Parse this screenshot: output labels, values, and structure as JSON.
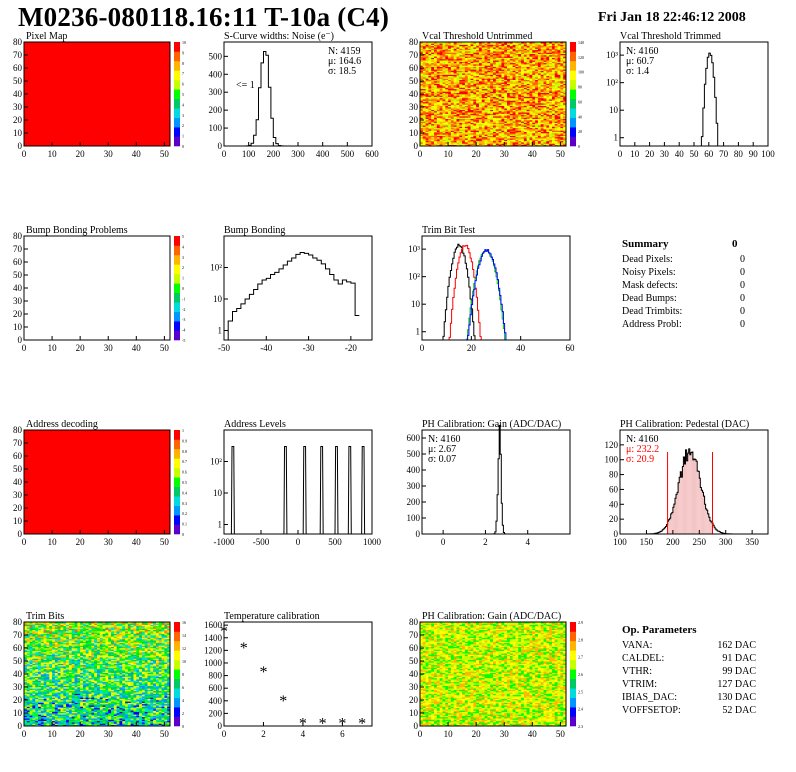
{
  "header": {
    "title": "M0236-080118.16:11 T-10a (C4)",
    "date": "Fri Jan 18 22:46:12 2008"
  },
  "colors": {
    "palette": [
      "#5a00c8",
      "#0000ff",
      "#0096ff",
      "#00dcdc",
      "#00c864",
      "#00ff00",
      "#c8ff00",
      "#ffff00",
      "#ffb400",
      "#ff6400",
      "#ff0000"
    ],
    "red": "#ff0000",
    "green": "#00cc00",
    "blue": "#0000ff"
  },
  "chart_data": [
    {
      "id": "pixel-map",
      "type": "heatmap",
      "title": "Pixel Map",
      "xlim": [
        0,
        52
      ],
      "ylim": [
        0,
        80
      ],
      "xticks": [
        "0",
        "10",
        "20",
        "30",
        "40",
        "50"
      ],
      "yticks": [
        "0",
        "10",
        "20",
        "30",
        "40",
        "50",
        "60",
        "70",
        "80"
      ],
      "zlim": [
        0,
        10
      ],
      "zticks": [
        "0",
        "1",
        "2",
        "3",
        "4",
        "5",
        "6",
        "7",
        "8",
        "9",
        "10"
      ],
      "fill": "uniform",
      "fill_value": 10
    },
    {
      "id": "scurve-widths",
      "type": "histogram",
      "title": "S-Curve widths: Noise (e⁻)",
      "xlim": [
        0,
        600
      ],
      "ylim": [
        0,
        580
      ],
      "log": false,
      "xticks": [
        "0",
        "100",
        "200",
        "300",
        "400",
        "500",
        "600"
      ],
      "yticks": [
        "0",
        "100",
        "200",
        "300",
        "400",
        "500"
      ],
      "stats": [
        "N: 4159",
        "μ: 164.6",
        "σ: 18.5"
      ],
      "annotation": "<= 1",
      "peaks": [
        {
          "mu": 164.6,
          "sigma": 18.5,
          "height": 560
        }
      ],
      "bins": 60
    },
    {
      "id": "vcal-untrimmed",
      "type": "heatmap",
      "title": "Vcal Threshold Untrimmed",
      "xlim": [
        0,
        52
      ],
      "ylim": [
        0,
        80
      ],
      "xticks": [
        "0",
        "10",
        "20",
        "30",
        "40",
        "50"
      ],
      "yticks": [
        "0",
        "10",
        "20",
        "30",
        "40",
        "50",
        "60",
        "70",
        "80"
      ],
      "zlim": [
        0,
        140
      ],
      "zticks": [
        "0",
        "20",
        "40",
        "60",
        "80",
        "100",
        "120",
        "140"
      ],
      "fill": "noise",
      "fill_mean": 0.8,
      "fill_spread": 0.15
    },
    {
      "id": "vcal-trimmed",
      "type": "histogram",
      "title": "Vcal Threshold Trimmed",
      "xlim": [
        0,
        100
      ],
      "ylim_log": [
        0.5,
        3000
      ],
      "log": true,
      "xticks": [
        "0",
        "10",
        "20",
        "30",
        "40",
        "50",
        "60",
        "70",
        "80",
        "90",
        "100"
      ],
      "yticks": [
        "1",
        "10",
        "10²",
        "10³"
      ],
      "stats": [
        "N: 4160",
        "μ: 60.7",
        "σ: 1.4"
      ],
      "peaks": [
        {
          "mu": 60.7,
          "sigma": 1.4,
          "height": 1200
        }
      ],
      "bins": 100
    },
    {
      "id": "bump-problems",
      "type": "heatmap",
      "title": "Bump Bonding Problems",
      "xlim": [
        0,
        52
      ],
      "ylim": [
        0,
        80
      ],
      "xticks": [
        "0",
        "10",
        "20",
        "30",
        "40",
        "50"
      ],
      "yticks": [
        "0",
        "10",
        "20",
        "30",
        "40",
        "50",
        "60",
        "70",
        "80"
      ],
      "zlim": [
        -5,
        5
      ],
      "zticks": [
        "-5",
        "-4",
        "-3",
        "-2",
        "-1",
        "0",
        "1",
        "2",
        "3",
        "4",
        "5"
      ],
      "fill": "empty"
    },
    {
      "id": "bump-bonding",
      "type": "histogram",
      "title": "Bump Bonding",
      "xlim": [
        -50,
        -15
      ],
      "ylim_log": [
        0.5,
        1000
      ],
      "log": true,
      "xticks": [
        "-50",
        "-40",
        "-30",
        "-20"
      ],
      "yticks": [
        "1",
        "10",
        "10²"
      ],
      "steps": [
        [
          -50,
          0.5
        ],
        [
          -49,
          2
        ],
        [
          -48,
          4
        ],
        [
          -47,
          5
        ],
        [
          -46,
          7
        ],
        [
          -45,
          10
        ],
        [
          -44,
          14
        ],
        [
          -43,
          20
        ],
        [
          -42,
          30
        ],
        [
          -41,
          40
        ],
        [
          -40,
          45
        ],
        [
          -39,
          60
        ],
        [
          -38,
          70
        ],
        [
          -37,
          90
        ],
        [
          -36,
          120
        ],
        [
          -35,
          160
        ],
        [
          -34,
          200
        ],
        [
          -33,
          260
        ],
        [
          -32,
          300
        ],
        [
          -31,
          280
        ],
        [
          -30,
          250
        ],
        [
          -29,
          200
        ],
        [
          -28,
          170
        ],
        [
          -27,
          130
        ],
        [
          -26,
          90
        ],
        [
          -25,
          60
        ],
        [
          -24,
          40
        ],
        [
          -23,
          30
        ],
        [
          -22,
          40
        ],
        [
          -21,
          35
        ],
        [
          -20,
          32
        ],
        [
          -19,
          3
        ],
        [
          -18,
          0.5
        ]
      ]
    },
    {
      "id": "trim-bit-test",
      "type": "histogram",
      "title": "Trim Bit Test",
      "xlim": [
        0,
        60
      ],
      "ylim_log": [
        0.5,
        3000
      ],
      "log": true,
      "xticks": [
        "0",
        "20",
        "40",
        "60"
      ],
      "yticks": [
        "1",
        "10",
        "10²",
        "10³"
      ],
      "series": [
        {
          "color": "#000000",
          "mu": 15,
          "sigma": 1.6,
          "height": 1400
        },
        {
          "color": "#ff0000",
          "mu": 17.5,
          "sigma": 1.6,
          "height": 1400
        },
        {
          "color": "#00cc00",
          "mu": 26,
          "sigma": 2.0,
          "height": 900
        },
        {
          "color": "#0000ff",
          "mu": 26.3,
          "sigma": 2.0,
          "height": 900
        }
      ]
    },
    {
      "id": "address-decoding",
      "type": "heatmap",
      "title": "Address decoding",
      "xlim": [
        0,
        52
      ],
      "ylim": [
        0,
        80
      ],
      "xticks": [
        "0",
        "10",
        "20",
        "30",
        "40",
        "50"
      ],
      "yticks": [
        "0",
        "10",
        "20",
        "30",
        "40",
        "50",
        "60",
        "70",
        "80"
      ],
      "zlim": [
        0,
        1
      ],
      "zticks": [
        "0",
        "0.1",
        "0.2",
        "0.3",
        "0.4",
        "0.5",
        "0.6",
        "0.7",
        "0.8",
        "0.9",
        "1"
      ],
      "fill": "uniform",
      "fill_value": 1
    },
    {
      "id": "address-levels",
      "type": "histogram",
      "title": "Address Levels",
      "xlim": [
        -1000,
        1000
      ],
      "ylim_log": [
        0.5,
        1000
      ],
      "log": true,
      "xticks": [
        "-1000",
        "-500",
        "0",
        "500",
        "1000"
      ],
      "yticks": [
        "1",
        "10",
        "10²"
      ],
      "spikes": [
        [
          -880,
          300
        ],
        [
          -170,
          300
        ],
        [
          90,
          300
        ],
        [
          320,
          300
        ],
        [
          520,
          300
        ],
        [
          700,
          300
        ],
        [
          880,
          300
        ]
      ]
    },
    {
      "id": "ph-gain",
      "type": "histogram",
      "title": "PH Calibration: Gain (ADC/DAC)",
      "xlim": [
        -1,
        6
      ],
      "ylim": [
        0,
        650
      ],
      "log": false,
      "xticks": [
        "0",
        "2",
        "4"
      ],
      "yticks": [
        "0",
        "100",
        "200",
        "300",
        "400",
        "500",
        "600"
      ],
      "stats": [
        "N: 4160",
        "μ: 2.67",
        "σ: 0.07"
      ],
      "peaks": [
        {
          "mu": 2.67,
          "sigma": 0.07,
          "height": 630
        }
      ],
      "bins": 140
    },
    {
      "id": "ph-pedestal",
      "type": "histogram",
      "title": "PH Calibration: Pedestal (DAC)",
      "xlim": [
        100,
        380
      ],
      "ylim": [
        0,
        140
      ],
      "log": false,
      "xticks": [
        "100",
        "150",
        "200",
        "250",
        "300",
        "350"
      ],
      "yticks": [
        "0",
        "20",
        "40",
        "60",
        "80",
        "100",
        "120"
      ],
      "stats": [
        "N: 4160",
        "μ: 232.2",
        "σ: 20.9"
      ],
      "stat_colors": [
        "#000000",
        "#ff0000",
        "#ff0000"
      ],
      "peaks": [
        {
          "mu": 232.2,
          "sigma": 20.9,
          "height": 110
        }
      ],
      "bins": 140,
      "hatched_range": [
        190,
        275
      ],
      "marker_lines": [
        190,
        275
      ]
    },
    {
      "id": "trim-bits",
      "type": "heatmap",
      "title": "Trim Bits",
      "xlim": [
        0,
        52
      ],
      "ylim": [
        0,
        80
      ],
      "xticks": [
        "0",
        "10",
        "20",
        "30",
        "40",
        "50"
      ],
      "yticks": [
        "0",
        "10",
        "20",
        "30",
        "40",
        "50",
        "60",
        "70",
        "80"
      ],
      "zlim": [
        0,
        16
      ],
      "zticks": [
        "0",
        "2",
        "4",
        "6",
        "8",
        "10",
        "12",
        "14",
        "16"
      ],
      "fill": "noise",
      "fill_mean": 0.45,
      "fill_spread": 0.18
    },
    {
      "id": "temperature-calibration",
      "type": "scatter",
      "title": "Temperature calibration",
      "xlim": [
        0,
        7.5
      ],
      "ylim": [
        0,
        1650
      ],
      "xticks": [
        "0",
        "2",
        "4",
        "6"
      ],
      "yticks": [
        "0",
        "200",
        "400",
        "600",
        "800",
        "1000",
        "1200",
        "1400",
        "1600"
      ],
      "x": [
        0,
        1,
        2,
        3,
        4,
        5,
        6,
        7
      ],
      "y": [
        1480,
        1220,
        840,
        380,
        20,
        20,
        20,
        20
      ]
    },
    {
      "id": "ph-gain-map",
      "type": "heatmap",
      "title": "PH Calibration: Gain (ADC/DAC)",
      "xlim": [
        0,
        52
      ],
      "ylim": [
        0,
        80
      ],
      "xticks": [
        "0",
        "10",
        "20",
        "30",
        "40",
        "50"
      ],
      "yticks": [
        "0",
        "10",
        "20",
        "30",
        "40",
        "50",
        "60",
        "70",
        "80"
      ],
      "zlim": [
        2.3,
        2.9
      ],
      "zticks": [
        "2.3",
        "2.4",
        "2.5",
        "2.6",
        "2.7",
        "2.8",
        "2.9"
      ],
      "fill": "noise",
      "fill_mean": 0.65,
      "fill_spread": 0.12
    }
  ],
  "summary": {
    "title": "Summary",
    "value": "0",
    "rows": [
      {
        "label": "Dead Pixels:",
        "value": "0"
      },
      {
        "label": "Noisy Pixels:",
        "value": "0"
      },
      {
        "label": "Mask defects:",
        "value": "0"
      },
      {
        "label": "Dead Bumps:",
        "value": "0"
      },
      {
        "label": "Dead Trimbits:",
        "value": "0"
      },
      {
        "label": "Address Probl:",
        "value": "0"
      }
    ]
  },
  "op_params": {
    "title": "Op. Parameters",
    "rows": [
      {
        "label": "VANA:",
        "value": "162 DAC"
      },
      {
        "label": "CALDEL:",
        "value": "91 DAC"
      },
      {
        "label": "VTHR:",
        "value": "99 DAC"
      },
      {
        "label": "VTRIM:",
        "value": "127 DAC"
      },
      {
        "label": "IBIAS_DAC:",
        "value": "130 DAC"
      },
      {
        "label": "VOFFSETOP:",
        "value": "52 DAC"
      }
    ]
  }
}
